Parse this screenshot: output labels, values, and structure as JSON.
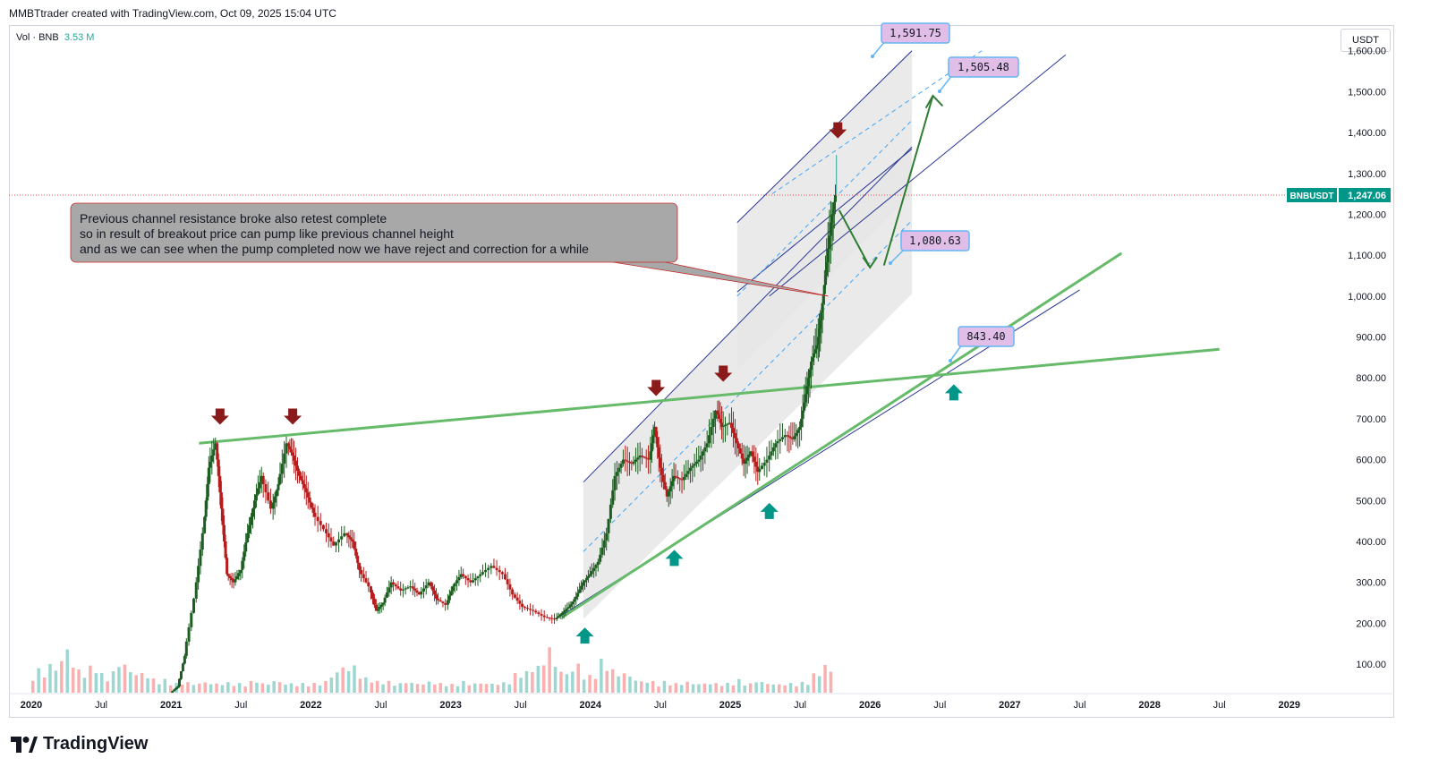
{
  "header": {
    "text": "MMBTtrader created with TradingView.com, Oct 09, 2025 15:04 UTC"
  },
  "volume_legend": {
    "label": "Vol · BNB",
    "value": "3.53 M"
  },
  "currency": "USDT",
  "branding": {
    "name": "TradingView"
  },
  "colors": {
    "up": "#26a69a",
    "down": "#ef5350",
    "bull_candle": "#1b5e20",
    "bear_candle": "#b71c1c",
    "channel": "#283593",
    "mid_dash": "#42a5f5",
    "green_line": "#66bb6a",
    "arrow_down": "#8b1a1a",
    "arrow_up": "#009688",
    "price_badge": "#009688",
    "label_fill": "#e1bee7",
    "label_border": "#64b5f6",
    "annotation_fill": "#a8a8a8"
  },
  "annotation": {
    "lines": [
      "Previous channel resistance broke also retest complete",
      "so in result of breakout price can pump like previous channel height",
      "and as we can see when the pump completed now we have reject and correction for a while"
    ]
  },
  "symbol_badge": {
    "symbol": "BNBUSDT",
    "price": "1,247.06"
  },
  "level_labels": [
    "1,591.75",
    "1,505.48",
    "1,080.63",
    "843.40"
  ],
  "chart_data": {
    "type": "candlestick",
    "symbol": "BNBUSDT",
    "title": "",
    "ylim": [
      30,
      1600
    ],
    "y_ticks": [
      "100.00",
      "200.00",
      "300.00",
      "400.00",
      "500.00",
      "600.00",
      "700.00",
      "800.00",
      "900.00",
      "1,000.00",
      "1,100.00",
      "1,200.00",
      "1,300.00",
      "1,400.00",
      "1,500.00",
      "1,600.00"
    ],
    "y_tick_values": [
      100,
      200,
      300,
      400,
      500,
      600,
      700,
      800,
      900,
      1000,
      1100,
      1200,
      1300,
      1400,
      1500,
      1600
    ],
    "x_ticks": [
      {
        "label": "2020",
        "t": 2020.0,
        "bold": true
      },
      {
        "label": "Jul",
        "t": 2020.5,
        "bold": false
      },
      {
        "label": "2021",
        "t": 2021.0,
        "bold": true
      },
      {
        "label": "Jul",
        "t": 2021.5,
        "bold": false
      },
      {
        "label": "2022",
        "t": 2022.0,
        "bold": true
      },
      {
        "label": "Jul",
        "t": 2022.5,
        "bold": false
      },
      {
        "label": "2023",
        "t": 2023.0,
        "bold": true
      },
      {
        "label": "Jul",
        "t": 2023.5,
        "bold": false
      },
      {
        "label": "2024",
        "t": 2024.0,
        "bold": true
      },
      {
        "label": "Jul",
        "t": 2024.5,
        "bold": false
      },
      {
        "label": "2025",
        "t": 2025.0,
        "bold": true
      },
      {
        "label": "Jul",
        "t": 2025.5,
        "bold": false
      },
      {
        "label": "2026",
        "t": 2026.0,
        "bold": true
      },
      {
        "label": "Jul",
        "t": 2026.5,
        "bold": false
      },
      {
        "label": "2027",
        "t": 2027.0,
        "bold": true
      },
      {
        "label": "Jul",
        "t": 2027.5,
        "bold": false
      },
      {
        "label": "2028",
        "t": 2028.0,
        "bold": true
      },
      {
        "label": "Jul",
        "t": 2028.5,
        "bold": false
      },
      {
        "label": "2029",
        "t": 2029.0,
        "bold": true
      }
    ],
    "price_path": [
      [
        2021.0,
        30
      ],
      [
        2021.05,
        45
      ],
      [
        2021.1,
        120
      ],
      [
        2021.17,
        260
      ],
      [
        2021.23,
        420
      ],
      [
        2021.27,
        580
      ],
      [
        2021.32,
        640
      ],
      [
        2021.36,
        480
      ],
      [
        2021.4,
        320
      ],
      [
        2021.45,
        300
      ],
      [
        2021.5,
        330
      ],
      [
        2021.55,
        420
      ],
      [
        2021.6,
        500
      ],
      [
        2021.65,
        560
      ],
      [
        2021.72,
        480
      ],
      [
        2021.77,
        540
      ],
      [
        2021.83,
        640
      ],
      [
        2021.87,
        610
      ],
      [
        2021.92,
        560
      ],
      [
        2021.97,
        520
      ],
      [
        2022.02,
        470
      ],
      [
        2022.1,
        430
      ],
      [
        2022.17,
        390
      ],
      [
        2022.25,
        420
      ],
      [
        2022.3,
        400
      ],
      [
        2022.35,
        330
      ],
      [
        2022.42,
        290
      ],
      [
        2022.47,
        230
      ],
      [
        2022.52,
        250
      ],
      [
        2022.58,
        300
      ],
      [
        2022.65,
        280
      ],
      [
        2022.72,
        290
      ],
      [
        2022.78,
        270
      ],
      [
        2022.85,
        300
      ],
      [
        2022.9,
        260
      ],
      [
        2022.97,
        245
      ],
      [
        2023.02,
        290
      ],
      [
        2023.08,
        320
      ],
      [
        2023.15,
        300
      ],
      [
        2023.22,
        320
      ],
      [
        2023.3,
        340
      ],
      [
        2023.38,
        320
      ],
      [
        2023.45,
        270
      ],
      [
        2023.52,
        240
      ],
      [
        2023.6,
        230
      ],
      [
        2023.68,
        215
      ],
      [
        2023.75,
        210
      ],
      [
        2023.8,
        225
      ],
      [
        2023.85,
        240
      ],
      [
        2023.9,
        265
      ],
      [
        2023.95,
        300
      ],
      [
        2024.0,
        320
      ],
      [
        2024.06,
        350
      ],
      [
        2024.12,
        420
      ],
      [
        2024.18,
        560
      ],
      [
        2024.24,
        600
      ],
      [
        2024.3,
        590
      ],
      [
        2024.36,
        610
      ],
      [
        2024.42,
        600
      ],
      [
        2024.46,
        680
      ],
      [
        2024.5,
        580
      ],
      [
        2024.55,
        510
      ],
      [
        2024.6,
        560
      ],
      [
        2024.66,
        550
      ],
      [
        2024.72,
        580
      ],
      [
        2024.78,
        600
      ],
      [
        2024.84,
        640
      ],
      [
        2024.9,
        720
      ],
      [
        2024.94,
        680
      ],
      [
        2025.0,
        690
      ],
      [
        2025.05,
        640
      ],
      [
        2025.1,
        590
      ],
      [
        2025.15,
        620
      ],
      [
        2025.2,
        570
      ],
      [
        2025.27,
        600
      ],
      [
        2025.33,
        640
      ],
      [
        2025.4,
        660
      ],
      [
        2025.45,
        650
      ],
      [
        2025.5,
        680
      ],
      [
        2025.54,
        760
      ],
      [
        2025.58,
        840
      ],
      [
        2025.62,
        880
      ],
      [
        2025.65,
        960
      ],
      [
        2025.68,
        1050
      ],
      [
        2025.72,
        1180
      ],
      [
        2025.75,
        1247
      ]
    ],
    "volume": {
      "label": "Vol · BNB",
      "value": "3.53 M",
      "relative_heights": [
        0.2,
        0.25,
        0.22,
        0.3,
        0.28,
        0.35,
        0.5,
        0.3,
        0.25,
        0.2,
        0.28,
        0.3,
        0.2,
        0.18,
        0.22,
        0.35,
        0.3,
        0.25,
        0.2,
        0.22,
        0.18,
        0.15,
        0.12,
        0.14,
        0.12,
        0.1,
        0.12,
        0.11,
        0.1,
        0.1,
        0.12,
        0.1,
        0.1,
        0.1,
        0.11,
        0.1,
        0.1,
        0.1,
        0.12,
        0.14,
        0.1,
        0.1,
        0.13,
        0.12,
        0.1,
        0.1,
        0.09,
        0.1,
        0.1,
        0.1,
        0.11,
        0.12,
        0.2,
        0.22,
        0.3,
        0.25,
        0.3,
        0.18,
        0.16,
        0.15,
        0.12,
        0.14,
        0.12,
        0.1,
        0.1,
        0.12,
        0.11,
        0.1,
        0.1,
        0.12,
        0.11,
        0.1,
        0.1,
        0.09,
        0.1,
        0.12,
        0.1,
        0.1,
        0.11,
        0.1,
        0.1,
        0.1,
        0.11,
        0.12
      ]
    },
    "channel": {
      "upper": [
        [
          2023.95,
          550
        ],
        [
          2025.28,
          1000
        ],
        [
          2027.3,
          1700
        ]
      ],
      "lower": [
        [
          2023.75,
          210
        ],
        [
          2025.65,
          970
        ],
        [
          2027.5,
          1370
        ]
      ],
      "next_upper": [
        [
          2025.05,
          1180
        ],
        [
          2027.3,
          1590
        ]
      ],
      "next_lower": [
        [
          2025.05,
          820
        ],
        [
          2027.3,
          1370
        ]
      ]
    },
    "trendlines": {
      "resistance_green": [
        [
          2021.2,
          640
        ],
        [
          2028.5,
          870
        ]
      ],
      "support_green": [
        [
          2023.8,
          215
        ],
        [
          2027.8,
          1105
        ]
      ]
    },
    "arrows_down": [
      [
        2021.35,
        690
      ],
      [
        2021.87,
        690
      ],
      [
        2024.47,
        760
      ],
      [
        2024.95,
        795
      ],
      [
        2025.77,
        1390
      ]
    ],
    "arrows_up": [
      [
        2023.96,
        185
      ],
      [
        2024.6,
        375
      ],
      [
        2025.28,
        490
      ],
      [
        2026.6,
        780
      ]
    ],
    "level_markers": [
      {
        "label": "1,591.75",
        "t": 2026.0,
        "price": 1591.75
      },
      {
        "label": "1,505.48",
        "t": 2026.5,
        "price": 1505.48
      },
      {
        "label": "1,080.63",
        "t": 2026.1,
        "price": 1080.63
      },
      {
        "label": "843.40",
        "t": 2026.55,
        "price": 843.4
      }
    ],
    "current_price": 1247.06,
    "current_price_label": "BNBUSDT"
  }
}
